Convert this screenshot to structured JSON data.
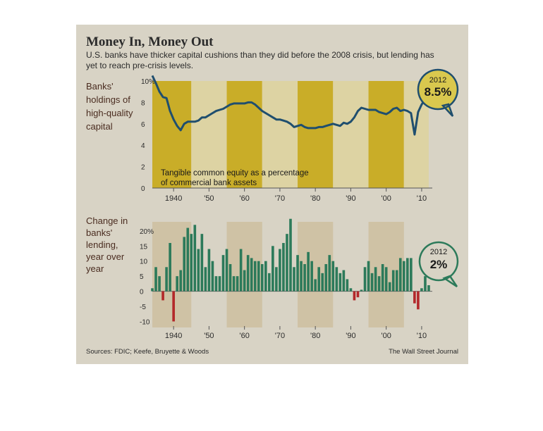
{
  "header": {
    "title": "Money In, Money Out",
    "subtitle_line1": "U.S. banks have thicker capital cushions than they did before the 2008 crisis, but lending has",
    "subtitle_line2": "yet to reach pre-crisis levels."
  },
  "footer": {
    "sources": "Sources: FDIC; Keefe, Bruyette & Woods",
    "credit": "The Wall Street Journal"
  },
  "colors": {
    "panel": "#d8d3c5",
    "line": "#1f4e6e",
    "gold": "#c9ad28",
    "pale_gold": "#ddd3a3",
    "green": "#2c7a5a",
    "red": "#b3282a",
    "callout": "#d9c84e"
  },
  "chart_data": [
    {
      "type": "line",
      "side_label": [
        "Banks'",
        "holdings of",
        "high-quality",
        "capital"
      ],
      "annotation": [
        "Tangible common equity as a percentage",
        "of commercial bank assets"
      ],
      "callout": {
        "year_label": "2012",
        "value_label": "8.5%"
      },
      "ylim": [
        0,
        10
      ],
      "y_ticks": [
        "0",
        "2",
        "4",
        "6",
        "8",
        "10%"
      ],
      "xlim": [
        1934,
        2013
      ],
      "x_ticks": [
        {
          "x": 1940,
          "label": "1940"
        },
        {
          "x": 1950,
          "label": "'50"
        },
        {
          "x": 1960,
          "label": "'60"
        },
        {
          "x": 1970,
          "label": "'70"
        },
        {
          "x": 1980,
          "label": "'80"
        },
        {
          "x": 1990,
          "label": "'90"
        },
        {
          "x": 2000,
          "label": "'00"
        },
        {
          "x": 2010,
          "label": "'10"
        }
      ],
      "series": [
        {
          "values": [
            [
              1934,
              10.5
            ],
            [
              1935,
              9.8
            ],
            [
              1936,
              9.0
            ],
            [
              1937,
              8.5
            ],
            [
              1938,
              8.4
            ],
            [
              1939,
              7.2
            ],
            [
              1940,
              6.4
            ],
            [
              1941,
              5.8
            ],
            [
              1942,
              5.4
            ],
            [
              1943,
              6.0
            ],
            [
              1944,
              6.2
            ],
            [
              1945,
              6.2
            ],
            [
              1946,
              6.2
            ],
            [
              1947,
              6.3
            ],
            [
              1948,
              6.6
            ],
            [
              1949,
              6.6
            ],
            [
              1950,
              6.8
            ],
            [
              1951,
              7.0
            ],
            [
              1952,
              7.2
            ],
            [
              1953,
              7.3
            ],
            [
              1954,
              7.4
            ],
            [
              1955,
              7.6
            ],
            [
              1956,
              7.8
            ],
            [
              1957,
              7.9
            ],
            [
              1958,
              7.9
            ],
            [
              1959,
              7.9
            ],
            [
              1960,
              7.9
            ],
            [
              1961,
              8.0
            ],
            [
              1962,
              8.0
            ],
            [
              1963,
              7.8
            ],
            [
              1964,
              7.5
            ],
            [
              1965,
              7.2
            ],
            [
              1966,
              7.0
            ],
            [
              1967,
              6.8
            ],
            [
              1968,
              6.6
            ],
            [
              1969,
              6.4
            ],
            [
              1970,
              6.4
            ],
            [
              1971,
              6.3
            ],
            [
              1972,
              6.2
            ],
            [
              1973,
              6.0
            ],
            [
              1974,
              5.7
            ],
            [
              1975,
              5.8
            ],
            [
              1976,
              5.9
            ],
            [
              1977,
              5.7
            ],
            [
              1978,
              5.6
            ],
            [
              1979,
              5.6
            ],
            [
              1980,
              5.6
            ],
            [
              1981,
              5.7
            ],
            [
              1982,
              5.7
            ],
            [
              1983,
              5.8
            ],
            [
              1984,
              5.9
            ],
            [
              1985,
              6.0
            ],
            [
              1986,
              5.9
            ],
            [
              1987,
              5.8
            ],
            [
              1988,
              6.1
            ],
            [
              1989,
              6.0
            ],
            [
              1990,
              6.2
            ],
            [
              1991,
              6.6
            ],
            [
              1992,
              7.2
            ],
            [
              1993,
              7.5
            ],
            [
              1994,
              7.4
            ],
            [
              1995,
              7.3
            ],
            [
              1996,
              7.3
            ],
            [
              1997,
              7.3
            ],
            [
              1998,
              7.1
            ],
            [
              1999,
              7.0
            ],
            [
              2000,
              6.9
            ],
            [
              2001,
              7.1
            ],
            [
              2002,
              7.4
            ],
            [
              2003,
              7.5
            ],
            [
              2004,
              7.2
            ],
            [
              2005,
              7.3
            ],
            [
              2006,
              7.2
            ],
            [
              2007,
              7.0
            ],
            [
              2008,
              5.0
            ],
            [
              2009,
              7.1
            ],
            [
              2010,
              7.8
            ],
            [
              2011,
              8.3
            ],
            [
              2012,
              8.5
            ]
          ]
        }
      ]
    },
    {
      "type": "bar",
      "side_label": [
        "Change in",
        "banks'",
        "lending,",
        "year over",
        "year"
      ],
      "callout": {
        "year_label": "2012",
        "value_label": "2%"
      },
      "ylim": [
        -12,
        23
      ],
      "y_ticks": [
        "-10",
        "-5",
        "0",
        "5",
        "10",
        "15",
        "20%"
      ],
      "xlim": [
        1934,
        2013
      ],
      "x_ticks": [
        {
          "x": 1940,
          "label": "1940"
        },
        {
          "x": 1950,
          "label": "'50"
        },
        {
          "x": 1960,
          "label": "'60"
        },
        {
          "x": 1970,
          "label": "'70"
        },
        {
          "x": 1980,
          "label": "'80"
        },
        {
          "x": 1990,
          "label": "'90"
        },
        {
          "x": 2000,
          "label": "'00"
        },
        {
          "x": 2010,
          "label": "'10"
        }
      ],
      "x": [
        1934,
        1935,
        1936,
        1937,
        1938,
        1939,
        1940,
        1941,
        1942,
        1943,
        1944,
        1945,
        1946,
        1947,
        1948,
        1949,
        1950,
        1951,
        1952,
        1953,
        1954,
        1955,
        1956,
        1957,
        1958,
        1959,
        1960,
        1961,
        1962,
        1963,
        1964,
        1965,
        1966,
        1967,
        1968,
        1969,
        1970,
        1971,
        1972,
        1973,
        1974,
        1975,
        1976,
        1977,
        1978,
        1979,
        1980,
        1981,
        1982,
        1983,
        1984,
        1985,
        1986,
        1987,
        1988,
        1989,
        1990,
        1991,
        1992,
        1993,
        1994,
        1995,
        1996,
        1997,
        1998,
        1999,
        2000,
        2001,
        2002,
        2003,
        2004,
        2005,
        2006,
        2007,
        2008,
        2009,
        2010,
        2011,
        2012
      ],
      "values": [
        1,
        8,
        5,
        -3,
        8,
        16,
        -10,
        5,
        7,
        18,
        21,
        19,
        22,
        14,
        19,
        8,
        14,
        10,
        5,
        5,
        12,
        14,
        9,
        5,
        5,
        14,
        7,
        12,
        11,
        10,
        10,
        9,
        10,
        6,
        15,
        8,
        14,
        16,
        19,
        24,
        8,
        12,
        10,
        9,
        13,
        10,
        4,
        8,
        6,
        9,
        12,
        10,
        8,
        6,
        7,
        4,
        1,
        -3,
        -2,
        0.5,
        8,
        10,
        6,
        8,
        5,
        9,
        8,
        3,
        7,
        7,
        11,
        10,
        11,
        11,
        -4,
        -6,
        1,
        5,
        2
      ]
    }
  ]
}
